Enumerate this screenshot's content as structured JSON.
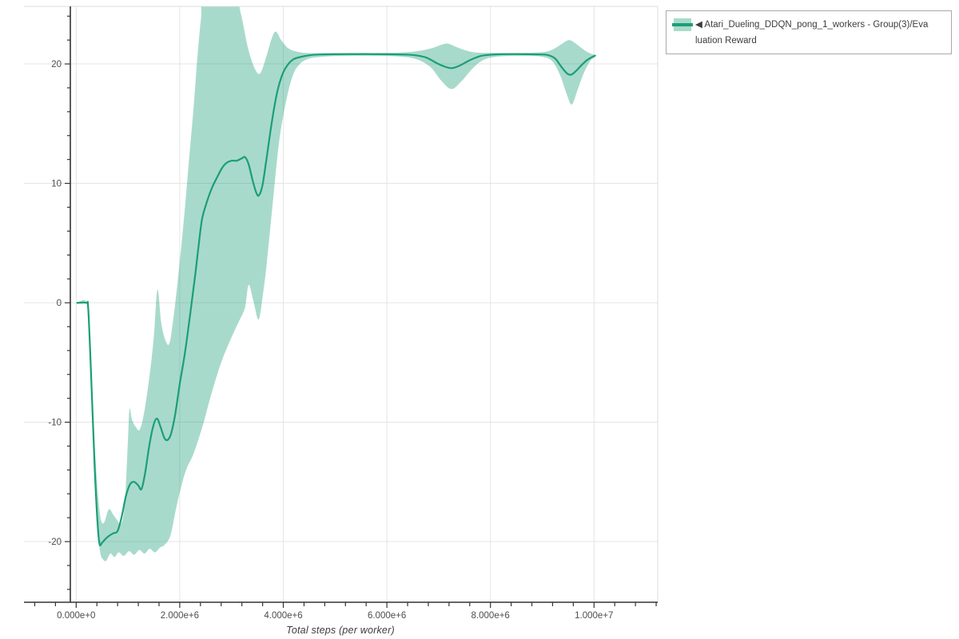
{
  "chart_data": {
    "type": "line",
    "title": "",
    "xlabel": "Total steps (per worker)",
    "ylabel": "",
    "grid": true,
    "legend_position": "outside-top-right",
    "xlim_millions": [
      -1.008,
      11.23
    ],
    "ylim": [
      -25.08,
      24.82
    ],
    "x_ticks": [
      {
        "value": 0,
        "label": "0.000e+0"
      },
      {
        "value": 2,
        "label": "2.000e+6"
      },
      {
        "value": 4,
        "label": "4.000e+6"
      },
      {
        "value": 6,
        "label": "6.000e+6"
      },
      {
        "value": 8,
        "label": "8.000e+6"
      },
      {
        "value": 10,
        "label": "1.000e+7"
      }
    ],
    "x_minor_step": 0.4,
    "x_minor_range": [
      -0.8,
      11.2
    ],
    "y_ticks": [
      {
        "value": 20,
        "label": "20"
      },
      {
        "value": 10,
        "label": "10"
      },
      {
        "value": 0,
        "label": "0"
      },
      {
        "value": -10,
        "label": "-10"
      },
      {
        "value": -20,
        "label": "-20"
      }
    ],
    "y_minor_step": 2,
    "y_minor_range": [
      -24,
      24
    ],
    "series": [
      {
        "name": "◀ Atari_Dueling_DDQN_pong_1_workers - Group(3)/Evaluation Reward",
        "color": "#1b9e77",
        "band_color": "rgba(27,158,119,0.38)",
        "x_unit": "millions of steps",
        "line": [
          [
            0.02,
            0
          ],
          [
            0.2,
            0
          ],
          [
            0.23,
            -0.3
          ],
          [
            0.27,
            -4
          ],
          [
            0.31,
            -8.5
          ],
          [
            0.36,
            -14
          ],
          [
            0.41,
            -18.3
          ],
          [
            0.45,
            -20.2
          ],
          [
            0.5,
            -20.1
          ],
          [
            0.56,
            -19.8
          ],
          [
            0.64,
            -19.5
          ],
          [
            0.72,
            -19.3
          ],
          [
            0.8,
            -19.1
          ],
          [
            0.88,
            -17.9
          ],
          [
            0.96,
            -16.2
          ],
          [
            1.04,
            -15.2
          ],
          [
            1.12,
            -15.0
          ],
          [
            1.2,
            -15.3
          ],
          [
            1.26,
            -15.6
          ],
          [
            1.33,
            -14.3
          ],
          [
            1.41,
            -12.0
          ],
          [
            1.49,
            -10.3
          ],
          [
            1.56,
            -9.7
          ],
          [
            1.63,
            -10.4
          ],
          [
            1.7,
            -11.3
          ],
          [
            1.76,
            -11.5
          ],
          [
            1.83,
            -11.0
          ],
          [
            1.91,
            -9.4
          ],
          [
            2.0,
            -6.8
          ],
          [
            2.1,
            -4.2
          ],
          [
            2.2,
            -1.0
          ],
          [
            2.3,
            2.4
          ],
          [
            2.37,
            5.0
          ],
          [
            2.43,
            7.0
          ],
          [
            2.52,
            8.4
          ],
          [
            2.62,
            9.6
          ],
          [
            2.72,
            10.5
          ],
          [
            2.82,
            11.3
          ],
          [
            2.9,
            11.7
          ],
          [
            3.0,
            11.9
          ],
          [
            3.1,
            11.9
          ],
          [
            3.2,
            12.1
          ],
          [
            3.26,
            12.2
          ],
          [
            3.33,
            11.6
          ],
          [
            3.41,
            10.2
          ],
          [
            3.48,
            9.2
          ],
          [
            3.53,
            9.0
          ],
          [
            3.6,
            9.9
          ],
          [
            3.68,
            12.2
          ],
          [
            3.78,
            15.2
          ],
          [
            3.88,
            17.6
          ],
          [
            3.98,
            19.1
          ],
          [
            4.08,
            19.9
          ],
          [
            4.2,
            20.4
          ],
          [
            4.35,
            20.6
          ],
          [
            4.55,
            20.75
          ],
          [
            4.8,
            20.8
          ],
          [
            5.2,
            20.82
          ],
          [
            5.7,
            20.82
          ],
          [
            6.2,
            20.8
          ],
          [
            6.5,
            20.75
          ],
          [
            6.75,
            20.55
          ],
          [
            6.95,
            20.1
          ],
          [
            7.1,
            19.8
          ],
          [
            7.25,
            19.65
          ],
          [
            7.4,
            19.85
          ],
          [
            7.55,
            20.2
          ],
          [
            7.7,
            20.5
          ],
          [
            7.85,
            20.7
          ],
          [
            8.1,
            20.8
          ],
          [
            8.5,
            20.82
          ],
          [
            8.9,
            20.8
          ],
          [
            9.1,
            20.75
          ],
          [
            9.25,
            20.45
          ],
          [
            9.38,
            19.7
          ],
          [
            9.48,
            19.2
          ],
          [
            9.56,
            19.1
          ],
          [
            9.65,
            19.4
          ],
          [
            9.77,
            19.95
          ],
          [
            9.89,
            20.4
          ],
          [
            10.02,
            20.7
          ]
        ],
        "band_upper": [
          [
            0.02,
            0
          ],
          [
            0.2,
            0
          ],
          [
            0.24,
            -1.5
          ],
          [
            0.28,
            -5
          ],
          [
            0.33,
            -9.5
          ],
          [
            0.38,
            -13.5
          ],
          [
            0.43,
            -16.5
          ],
          [
            0.48,
            -18.2
          ],
          [
            0.54,
            -18.4
          ],
          [
            0.63,
            -17.3
          ],
          [
            0.71,
            -17.7
          ],
          [
            0.79,
            -18.2
          ],
          [
            0.87,
            -18.5
          ],
          [
            0.94,
            -16.8
          ],
          [
            1.0,
            -11.5
          ],
          [
            1.03,
            -8.9
          ],
          [
            1.08,
            -9.8
          ],
          [
            1.15,
            -10.4
          ],
          [
            1.23,
            -10.6
          ],
          [
            1.32,
            -9.0
          ],
          [
            1.42,
            -6.0
          ],
          [
            1.5,
            -2.8
          ],
          [
            1.57,
            1.1
          ],
          [
            1.64,
            -1.6
          ],
          [
            1.72,
            -3.1
          ],
          [
            1.8,
            -3.4
          ],
          [
            1.88,
            -1.2
          ],
          [
            1.97,
            2.2
          ],
          [
            2.07,
            6.5
          ],
          [
            2.17,
            11.5
          ],
          [
            2.27,
            16.5
          ],
          [
            2.34,
            20.5
          ],
          [
            2.41,
            23.8
          ],
          [
            2.48,
            25.8
          ],
          [
            3.05,
            25.8
          ],
          [
            3.18,
            24.2
          ],
          [
            3.32,
            21.3
          ],
          [
            3.45,
            19.6
          ],
          [
            3.55,
            19.2
          ],
          [
            3.65,
            20.3
          ],
          [
            3.78,
            22.2
          ],
          [
            3.86,
            22.7
          ],
          [
            3.96,
            22.0
          ],
          [
            4.1,
            21.3
          ],
          [
            4.3,
            21.0
          ],
          [
            4.55,
            20.9
          ],
          [
            5.0,
            20.92
          ],
          [
            5.6,
            20.92
          ],
          [
            6.2,
            20.95
          ],
          [
            6.55,
            21.05
          ],
          [
            6.85,
            21.3
          ],
          [
            7.05,
            21.6
          ],
          [
            7.18,
            21.7
          ],
          [
            7.35,
            21.4
          ],
          [
            7.55,
            21.1
          ],
          [
            7.75,
            20.95
          ],
          [
            8.2,
            20.92
          ],
          [
            8.8,
            20.95
          ],
          [
            9.1,
            21.05
          ],
          [
            9.28,
            21.4
          ],
          [
            9.42,
            21.8
          ],
          [
            9.53,
            22.0
          ],
          [
            9.65,
            21.7
          ],
          [
            9.8,
            21.2
          ],
          [
            9.92,
            20.9
          ],
          [
            10.02,
            20.75
          ]
        ],
        "band_lower": [
          [
            0.02,
            0
          ],
          [
            0.2,
            0
          ],
          [
            0.25,
            -3
          ],
          [
            0.3,
            -8
          ],
          [
            0.35,
            -13.5
          ],
          [
            0.4,
            -18
          ],
          [
            0.46,
            -20.8
          ],
          [
            0.52,
            -21.5
          ],
          [
            0.58,
            -21.6
          ],
          [
            0.66,
            -21.0
          ],
          [
            0.74,
            -21.3
          ],
          [
            0.82,
            -20.9
          ],
          [
            0.92,
            -21.2
          ],
          [
            1.02,
            -20.8
          ],
          [
            1.12,
            -21.1
          ],
          [
            1.22,
            -20.7
          ],
          [
            1.32,
            -21.0
          ],
          [
            1.42,
            -20.6
          ],
          [
            1.52,
            -20.9
          ],
          [
            1.62,
            -20.5
          ],
          [
            1.7,
            -20.3
          ],
          [
            1.82,
            -19.5
          ],
          [
            1.93,
            -17.2
          ],
          [
            2.04,
            -15.2
          ],
          [
            2.14,
            -13.8
          ],
          [
            2.27,
            -12.6
          ],
          [
            2.45,
            -10.2
          ],
          [
            2.6,
            -7.8
          ],
          [
            2.8,
            -5.0
          ],
          [
            3.0,
            -2.9
          ],
          [
            3.15,
            -1.5
          ],
          [
            3.26,
            -0.4
          ],
          [
            3.33,
            1.5
          ],
          [
            3.42,
            0.2
          ],
          [
            3.52,
            -1.4
          ],
          [
            3.6,
            0.5
          ],
          [
            3.68,
            3.3
          ],
          [
            3.8,
            8.5
          ],
          [
            3.92,
            13.5
          ],
          [
            4.05,
            16.8
          ],
          [
            4.18,
            19.0
          ],
          [
            4.32,
            20.0
          ],
          [
            4.5,
            20.45
          ],
          [
            4.75,
            20.6
          ],
          [
            5.2,
            20.68
          ],
          [
            5.8,
            20.68
          ],
          [
            6.3,
            20.6
          ],
          [
            6.6,
            20.35
          ],
          [
            6.85,
            19.7
          ],
          [
            7.05,
            18.6
          ],
          [
            7.25,
            17.9
          ],
          [
            7.45,
            18.6
          ],
          [
            7.65,
            19.6
          ],
          [
            7.85,
            20.3
          ],
          [
            8.1,
            20.6
          ],
          [
            8.6,
            20.68
          ],
          [
            9.0,
            20.6
          ],
          [
            9.2,
            20.2
          ],
          [
            9.35,
            19.0
          ],
          [
            9.47,
            17.5
          ],
          [
            9.57,
            16.6
          ],
          [
            9.68,
            17.8
          ],
          [
            9.8,
            19.2
          ],
          [
            9.92,
            20.2
          ],
          [
            10.02,
            20.6
          ]
        ]
      }
    ]
  },
  "legend": {
    "lines": [
      "◀ Atari_Dueling_DDQN_pong_1_workers - Group(3)/Eva",
      "luation Reward"
    ]
  },
  "colors": {
    "line": "#1b9e77",
    "band": "rgba(27,158,119,0.38)",
    "grid": "#e4e4e4",
    "frame": "#dcdcdc",
    "axis": "#333333",
    "tick_label": "#4d4d4d",
    "legend_border": "#a9a9a9",
    "legend_text": "#3d3d3d"
  }
}
